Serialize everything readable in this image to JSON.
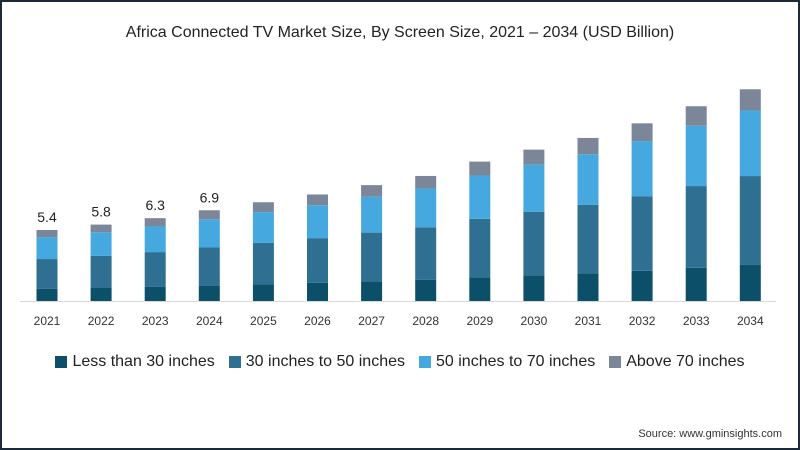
{
  "chart_data": {
    "type": "bar",
    "stacked": true,
    "title": "Africa Connected TV Market Size, By Screen Size, 2021 – 2034 (USD Billion)",
    "xlabel": "",
    "ylabel": "",
    "categories": [
      "2021",
      "2022",
      "2023",
      "2024",
      "2025",
      "2026",
      "2027",
      "2028",
      "2029",
      "2030",
      "2031",
      "2032",
      "2033",
      "2034"
    ],
    "series": [
      {
        "name": "Less than 30 inches",
        "color": "#0b4f68",
        "values": [
          0.92,
          0.99,
          1.07,
          1.17,
          1.28,
          1.38,
          1.5,
          1.62,
          1.8,
          1.96,
          2.11,
          2.3,
          2.52,
          2.74
        ]
      },
      {
        "name": "30 inches to 50 inches",
        "color": "#2f6f92",
        "values": [
          2.27,
          2.44,
          2.65,
          2.9,
          3.15,
          3.4,
          3.7,
          3.99,
          4.45,
          4.83,
          5.21,
          5.67,
          6.22,
          6.76
        ]
      },
      {
        "name": "50 inches to 70 inches",
        "color": "#45a9e0",
        "values": [
          1.67,
          1.8,
          1.95,
          2.14,
          2.33,
          2.51,
          2.73,
          2.95,
          3.29,
          3.57,
          3.84,
          4.19,
          4.59,
          4.99
        ]
      },
      {
        "name": "Above 70 inches",
        "color": "#7b8798",
        "values": [
          0.54,
          0.58,
          0.63,
          0.69,
          0.75,
          0.81,
          0.88,
          0.95,
          1.06,
          1.15,
          1.24,
          1.35,
          1.48,
          1.61
        ]
      }
    ],
    "data_labels": [
      "5.4",
      "5.8",
      "6.3",
      "6.9",
      "",
      "",
      "",
      "",
      "",
      "",
      "",
      "",
      "",
      ""
    ],
    "ylim": [
      0,
      17
    ],
    "grid": false,
    "legend_position": "bottom"
  },
  "source": "Source: www.gminsights.com"
}
